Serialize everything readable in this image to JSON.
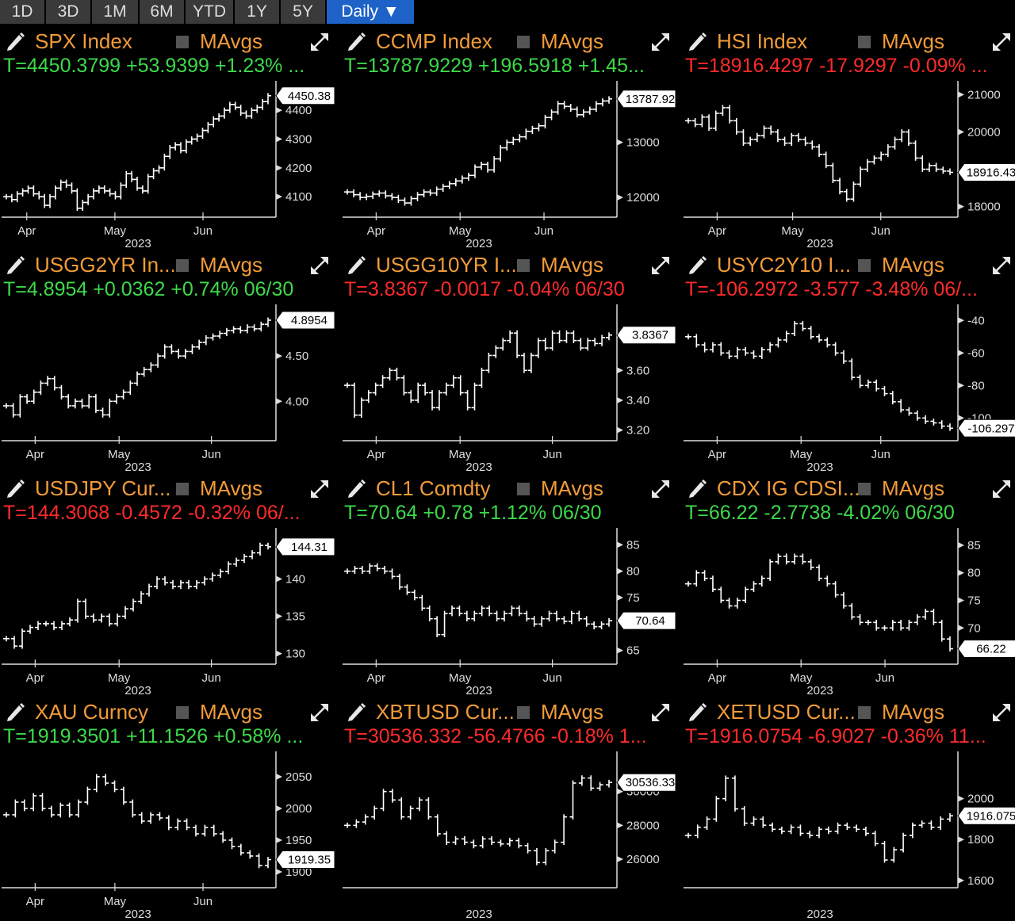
{
  "toolbar": {
    "buttons": [
      "1D",
      "3D",
      "1M",
      "6M",
      "YTD",
      "1Y",
      "5Y"
    ],
    "active": "Daily ▼"
  },
  "panels": [
    {
      "title": "SPX Index",
      "mavgs": "MAvgs",
      "quote": "T=4450.3799 +53.9399 +1.23% ...",
      "quote_color": "#3dd94a"
    },
    {
      "title": "CCMP Index",
      "mavgs": "MAvgs",
      "quote": "T=13787.9229 +196.5918 +1.45...",
      "quote_color": "#3dd94a"
    },
    {
      "title": "HSI Index",
      "mavgs": "MAvgs",
      "quote": "T=18916.4297 -17.9297 -0.09% ...",
      "quote_color": "#ff2a2a"
    },
    {
      "title": "USGG2YR In...",
      "mavgs": "MAvgs",
      "quote": "T=4.8954 +0.0362 +0.74% 06/30",
      "quote_color": "#3dd94a"
    },
    {
      "title": "USGG10YR I...",
      "mavgs": "MAvgs",
      "quote": "T=3.8367 -0.0017 -0.04% 06/30",
      "quote_color": "#ff2a2a"
    },
    {
      "title": "USYC2Y10 I...",
      "mavgs": "MAvgs",
      "quote": "T=-106.2972 -3.577 -3.48% 06/...",
      "quote_color": "#ff2a2a"
    },
    {
      "title": "USDJPY Cur...",
      "mavgs": "MAvgs",
      "quote": "T=144.3068 -0.4572 -0.32% 06/...",
      "quote_color": "#ff2a2a"
    },
    {
      "title": "CL1 Comdty",
      "mavgs": "MAvgs",
      "quote": "T=70.64 +0.78 +1.12% 06/30",
      "quote_color": "#3dd94a"
    },
    {
      "title": "CDX IG CDSI...",
      "mavgs": "MAvgs",
      "quote": "T=66.22 -2.7738 -4.02% 06/30",
      "quote_color": "#3dd94a"
    },
    {
      "title": "XAU Curncy",
      "mavgs": "MAvgs",
      "quote": "T=1919.3501 +11.1526 +0.58% ...",
      "quote_color": "#3dd94a"
    },
    {
      "title": "XBTUSD Cur...",
      "mavgs": "MAvgs",
      "quote": "T=30536.332 -56.4766 -0.18% 1...",
      "quote_color": "#ff2a2a"
    },
    {
      "title": "XETUSD Cur...",
      "mavgs": "MAvgs",
      "quote": "T=1916.0754 -6.9027 -0.36% 11...",
      "quote_color": "#ff2a2a"
    }
  ],
  "chart_data": [
    {
      "type": "line",
      "ylim": [
        4040,
        4480
      ],
      "yticks": [
        4100,
        4200,
        4300,
        4400
      ],
      "ytick_labels": [
        "4100",
        "4200",
        "4300",
        "4400"
      ],
      "last_label": "4450.38",
      "last": 4450.38,
      "month_labels": [
        "Apr",
        "May",
        "Jun"
      ],
      "year_label": "2023",
      "x_range": [
        0,
        65
      ],
      "month_x": [
        6,
        27,
        48
      ],
      "y": [
        4100,
        4090,
        4110,
        4120,
        4130,
        4110,
        4100,
        4070,
        4100,
        4130,
        4150,
        4140,
        4120,
        4060,
        4080,
        4100,
        4120,
        4130,
        4120,
        4110,
        4100,
        4140,
        4180,
        4160,
        4130,
        4120,
        4170,
        4190,
        4200,
        4240,
        4270,
        4280,
        4260,
        4290,
        4300,
        4310,
        4330,
        4350,
        4370,
        4380,
        4400,
        4420,
        4410,
        4390,
        4380,
        4400,
        4410,
        4430,
        4450.38
      ]
    },
    {
      "type": "line",
      "ylim": [
        11700,
        14000
      ],
      "yticks": [
        12000,
        13000
      ],
      "ytick_labels": [
        "12000",
        "13000"
      ],
      "last_label": "13787.92",
      "last": 13787.92,
      "month_labels": [
        "Apr",
        "May",
        "Jun"
      ],
      "year_label": "2023",
      "x_range": [
        0,
        65
      ],
      "month_x": [
        8,
        28,
        48
      ],
      "y": [
        12100,
        12050,
        12000,
        12020,
        12060,
        12080,
        12030,
        12000,
        11950,
        11900,
        11980,
        12050,
        12100,
        12080,
        12150,
        12200,
        12250,
        12300,
        12350,
        12400,
        12550,
        12600,
        12500,
        12700,
        12900,
        13000,
        13050,
        13100,
        13200,
        13250,
        13300,
        13450,
        13550,
        13700,
        13650,
        13600,
        13500,
        13550,
        13600,
        13700,
        13750,
        13787.92
      ]
    },
    {
      "type": "line",
      "ylim": [
        17800,
        21200
      ],
      "yticks": [
        18000,
        20000,
        21000
      ],
      "ytick_labels": [
        "18000",
        "20000",
        "21000"
      ],
      "last_label": "18916.43",
      "last": 18916.43,
      "month_labels": [
        "Apr",
        "May",
        "Jun"
      ],
      "year_label": "2023",
      "x_range": [
        0,
        65
      ],
      "month_x": [
        8,
        26,
        47
      ],
      "y": [
        20300,
        20200,
        20400,
        20100,
        20500,
        20650,
        20300,
        20000,
        19700,
        19800,
        19900,
        20100,
        20000,
        19800,
        19700,
        19900,
        19800,
        19700,
        19600,
        19400,
        19100,
        18700,
        18400,
        18200,
        18600,
        19000,
        19200,
        19300,
        19400,
        19600,
        19800,
        20000,
        19700,
        19300,
        19000,
        19100,
        19000,
        18950,
        18916.43
      ]
    },
    {
      "type": "line",
      "ylim": [
        3.6,
        5.0
      ],
      "yticks": [
        4.0,
        4.5
      ],
      "ytick_labels": [
        "4.00",
        "4.50"
      ],
      "last_label": "4.8954",
      "last": 4.8954,
      "month_labels": [
        "Apr",
        "May",
        "Jun"
      ],
      "year_label": "2023",
      "x_range": [
        0,
        65
      ],
      "month_x": [
        8,
        28,
        50
      ],
      "y": [
        3.95,
        3.85,
        4.05,
        4.0,
        4.1,
        4.2,
        4.25,
        4.15,
        4.05,
        3.95,
        4.0,
        3.95,
        4.05,
        3.9,
        3.85,
        4.0,
        4.05,
        4.1,
        4.2,
        4.3,
        4.35,
        4.4,
        4.5,
        4.6,
        4.55,
        4.5,
        4.55,
        4.6,
        4.65,
        4.7,
        4.72,
        4.75,
        4.78,
        4.8,
        4.78,
        4.82,
        4.8,
        4.85,
        4.8954
      ]
    },
    {
      "type": "line",
      "ylim": [
        3.15,
        4.0
      ],
      "yticks": [
        3.2,
        3.4,
        3.6
      ],
      "ytick_labels": [
        "3.20",
        "3.40",
        "3.60"
      ],
      "last_label": "3.8367",
      "last": 3.8367,
      "month_labels": [
        "Apr",
        "May",
        "Jun"
      ],
      "year_label": "2023",
      "x_range": [
        0,
        65
      ],
      "month_x": [
        8,
        28,
        50
      ],
      "y": [
        3.5,
        3.3,
        3.4,
        3.45,
        3.5,
        3.55,
        3.6,
        3.55,
        3.45,
        3.4,
        3.5,
        3.45,
        3.35,
        3.45,
        3.5,
        3.55,
        3.45,
        3.35,
        3.5,
        3.6,
        3.7,
        3.75,
        3.8,
        3.85,
        3.7,
        3.6,
        3.7,
        3.8,
        3.75,
        3.85,
        3.8,
        3.85,
        3.8,
        3.75,
        3.8,
        3.78,
        3.82,
        3.8367
      ]
    },
    {
      "type": "line",
      "ylim": [
        -112,
        -34
      ],
      "yticks": [
        -100,
        -80,
        -60,
        -40
      ],
      "ytick_labels": [
        "-100",
        "-80",
        "-60",
        "-40"
      ],
      "last_label": "-106.297",
      "last": -106.297,
      "month_labels": [
        "Apr",
        "May",
        "Jun"
      ],
      "year_label": "2023",
      "x_range": [
        0,
        65
      ],
      "month_x": [
        8,
        28,
        47
      ],
      "y": [
        -50,
        -55,
        -58,
        -55,
        -60,
        -62,
        -58,
        -60,
        -62,
        -58,
        -55,
        -52,
        -48,
        -42,
        -45,
        -50,
        -52,
        -55,
        -60,
        -65,
        -75,
        -80,
        -78,
        -82,
        -85,
        -90,
        -95,
        -97,
        -100,
        -102,
        -103,
        -105,
        -106.297
      ]
    },
    {
      "type": "line",
      "ylim": [
        129,
        146
      ],
      "yticks": [
        130,
        135,
        140
      ],
      "ytick_labels": [
        "130",
        "135",
        "140"
      ],
      "last_label": "144.31",
      "last": 144.31,
      "month_labels": [
        "Apr",
        "May",
        "Jun"
      ],
      "year_label": "2023",
      "x_range": [
        0,
        65
      ],
      "month_x": [
        8,
        28,
        50
      ],
      "y": [
        132,
        131,
        133,
        133.5,
        134,
        134,
        133.5,
        134,
        134.5,
        137,
        135,
        134.5,
        135,
        134,
        135,
        136,
        137,
        138,
        139,
        140,
        139.5,
        139,
        139.5,
        139,
        139.5,
        140,
        140.5,
        141,
        142,
        142.5,
        143,
        143.5,
        144.5,
        144.31
      ]
    },
    {
      "type": "line",
      "ylim": [
        63,
        87
      ],
      "yticks": [
        65,
        75,
        80,
        85
      ],
      "ytick_labels": [
        "65",
        "75",
        "80",
        "85"
      ],
      "last_label": "70.64",
      "last": 70.64,
      "month_labels": [
        "Apr",
        "May",
        "Jun"
      ],
      "year_label": "2023",
      "x_range": [
        0,
        65
      ],
      "month_x": [
        8,
        28,
        50
      ],
      "y": [
        80,
        80.5,
        80,
        81,
        80.5,
        80,
        79,
        77,
        76,
        75,
        73,
        71,
        68,
        72,
        73,
        72,
        71,
        72,
        73,
        72,
        71,
        72,
        73,
        72,
        71,
        70,
        71,
        72,
        71,
        70.5,
        72,
        71,
        70,
        69.5,
        70,
        70.64
      ]
    },
    {
      "type": "line",
      "ylim": [
        64,
        87
      ],
      "yticks": [
        70,
        75,
        80,
        85
      ],
      "ytick_labels": [
        "70",
        "75",
        "80",
        "85"
      ],
      "last_label": "66.22",
      "last": 66.22,
      "month_labels": [
        "Apr",
        "May",
        "Jun"
      ],
      "year_label": "2023",
      "x_range": [
        0,
        65
      ],
      "month_x": [
        8,
        28,
        48
      ],
      "y": [
        78,
        80,
        79,
        77,
        75,
        74,
        75,
        77,
        78,
        79,
        82,
        83,
        82,
        83,
        82,
        81,
        79,
        78,
        76,
        74,
        72,
        71,
        71,
        70,
        70,
        71,
        70,
        71,
        72,
        73,
        71,
        68,
        66.22
      ]
    },
    {
      "type": "line",
      "ylim": [
        1880,
        2080
      ],
      "yticks": [
        1900,
        1950,
        2000,
        2050
      ],
      "ytick_labels": [
        "1900",
        "1950",
        "2000",
        "2050"
      ],
      "last_label": "1919.35",
      "last": 1919.35,
      "month_labels": [
        "Apr",
        "May",
        "Jun"
      ],
      "year_label": "2023",
      "x_range": [
        0,
        65
      ],
      "month_x": [
        8,
        27,
        48
      ],
      "y": [
        1990,
        2010,
        2000,
        2020,
        2000,
        1990,
        2005,
        1990,
        2010,
        2030,
        2050,
        2040,
        2030,
        2010,
        1990,
        1980,
        1990,
        1985,
        1970,
        1980,
        1970,
        1960,
        1970,
        1960,
        1950,
        1940,
        1930,
        1925,
        1910,
        1919.35
      ]
    },
    {
      "type": "line",
      "ylim": [
        24500,
        32000
      ],
      "yticks": [
        26000,
        28000,
        30000
      ],
      "ytick_labels": [
        "26000",
        "28000",
        "30000"
      ],
      "last_label": "30536.33",
      "last": 30536.33,
      "month_labels": [],
      "year_label": "2023",
      "x_range": [
        0,
        65
      ],
      "month_x": [],
      "y": [
        28000,
        28200,
        28500,
        29000,
        30000,
        29500,
        28500,
        29000,
        29500,
        28500,
        27500,
        27000,
        27200,
        27000,
        26800,
        27200,
        27000,
        26900,
        27100,
        26800,
        26500,
        25800,
        26500,
        27000,
        28500,
        30500,
        30800,
        30200,
        30400,
        30536.33
      ]
    },
    {
      "type": "line",
      "ylim": [
        1580,
        2200
      ],
      "yticks": [
        1600,
        1800,
        2000
      ],
      "ytick_labels": [
        "1600",
        "1800",
        "2000"
      ],
      "last_label": "1916.075",
      "last": 1916.075,
      "month_labels": [],
      "year_label": "2023",
      "x_range": [
        0,
        65
      ],
      "month_x": [],
      "y": [
        1820,
        1860,
        1900,
        2000,
        2100,
        1950,
        1880,
        1900,
        1870,
        1850,
        1840,
        1860,
        1830,
        1820,
        1850,
        1840,
        1870,
        1860,
        1850,
        1830,
        1780,
        1700,
        1750,
        1820,
        1870,
        1880,
        1860,
        1900,
        1916.075
      ]
    }
  ]
}
